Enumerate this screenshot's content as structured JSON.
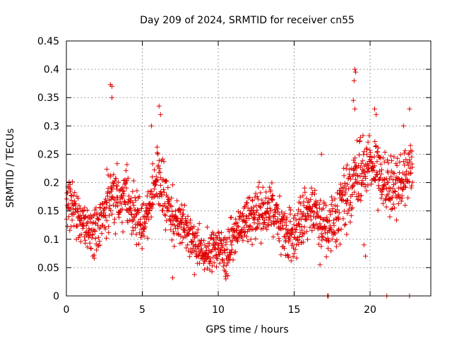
{
  "chart_data": {
    "type": "scatter",
    "title": "Day 209 of 2024, SRMTID for receiver cn55",
    "xlabel": "GPS time / hours",
    "ylabel": "SRMTID / TECUs",
    "xlim": [
      0,
      24
    ],
    "ylim": [
      0,
      0.45
    ],
    "xticks": [
      0,
      5,
      10,
      15,
      20
    ],
    "xtick_labels": [
      "0",
      "5",
      "10",
      "15",
      "20"
    ],
    "yticks": [
      0,
      0.05,
      0.1,
      0.15,
      0.2,
      0.25,
      0.3,
      0.35,
      0.4,
      0.45
    ],
    "ytick_labels": [
      "0",
      "0.05",
      "0.1",
      "0.15",
      "0.2",
      "0.25",
      "0.3",
      "0.35",
      "0.4",
      "0.45"
    ],
    "grid": true,
    "marker": "+",
    "color": "#e00000",
    "envelope": {
      "description": "Approximate typical SRMTID level (TECU) vs GPS hour; points scatter around this curve",
      "x": [
        0.0,
        0.5,
        1.0,
        1.5,
        2.0,
        2.5,
        3.0,
        3.5,
        4.0,
        4.5,
        5.0,
        5.5,
        6.0,
        6.5,
        7.0,
        7.5,
        8.0,
        8.5,
        9.0,
        9.5,
        10.0,
        10.5,
        11.0,
        11.5,
        12.0,
        12.5,
        13.0,
        13.5,
        14.0,
        14.5,
        15.0,
        15.5,
        16.0,
        16.5,
        17.0,
        17.5,
        18.0,
        18.5,
        19.0,
        19.5,
        20.0,
        20.5,
        21.0,
        21.5,
        22.0,
        22.5,
        22.8
      ],
      "center": [
        0.15,
        0.16,
        0.14,
        0.12,
        0.11,
        0.15,
        0.19,
        0.16,
        0.17,
        0.15,
        0.12,
        0.16,
        0.21,
        0.18,
        0.14,
        0.13,
        0.11,
        0.09,
        0.08,
        0.08,
        0.08,
        0.07,
        0.11,
        0.12,
        0.13,
        0.14,
        0.15,
        0.16,
        0.12,
        0.11,
        0.11,
        0.13,
        0.15,
        0.14,
        0.13,
        0.13,
        0.15,
        0.18,
        0.21,
        0.22,
        0.23,
        0.22,
        0.2,
        0.19,
        0.19,
        0.21,
        0.24
      ],
      "spread": [
        0.05,
        0.04,
        0.04,
        0.04,
        0.04,
        0.05,
        0.07,
        0.05,
        0.06,
        0.05,
        0.04,
        0.05,
        0.07,
        0.06,
        0.05,
        0.04,
        0.04,
        0.03,
        0.03,
        0.03,
        0.03,
        0.03,
        0.04,
        0.04,
        0.04,
        0.05,
        0.05,
        0.05,
        0.04,
        0.04,
        0.04,
        0.05,
        0.05,
        0.05,
        0.05,
        0.05,
        0.06,
        0.06,
        0.07,
        0.07,
        0.06,
        0.06,
        0.06,
        0.06,
        0.06,
        0.06,
        0.05
      ]
    },
    "highlights": [
      {
        "x": 2.9,
        "y": 0.373
      },
      {
        "x": 3.0,
        "y": 0.37
      },
      {
        "x": 3.0,
        "y": 0.35
      },
      {
        "x": 6.1,
        "y": 0.335
      },
      {
        "x": 6.2,
        "y": 0.32
      },
      {
        "x": 5.6,
        "y": 0.3
      },
      {
        "x": 10.5,
        "y": 0.03
      },
      {
        "x": 7.0,
        "y": 0.032
      },
      {
        "x": 14.8,
        "y": 0.062
      },
      {
        "x": 16.7,
        "y": 0.055
      },
      {
        "x": 16.8,
        "y": 0.25
      },
      {
        "x": 18.9,
        "y": 0.345
      },
      {
        "x": 18.95,
        "y": 0.38
      },
      {
        "x": 19.0,
        "y": 0.4
      },
      {
        "x": 19.05,
        "y": 0.395
      },
      {
        "x": 19.0,
        "y": 0.33
      },
      {
        "x": 19.6,
        "y": 0.09
      },
      {
        "x": 19.7,
        "y": 0.07
      },
      {
        "x": 20.3,
        "y": 0.33
      },
      {
        "x": 20.4,
        "y": 0.32
      },
      {
        "x": 22.2,
        "y": 0.3
      },
      {
        "x": 22.6,
        "y": 0.33
      },
      {
        "x": 17.2,
        "y": 0.0
      },
      {
        "x": 17.25,
        "y": 0.0
      },
      {
        "x": 21.1,
        "y": 0.0
      },
      {
        "x": 22.6,
        "y": 0.0
      }
    ]
  }
}
